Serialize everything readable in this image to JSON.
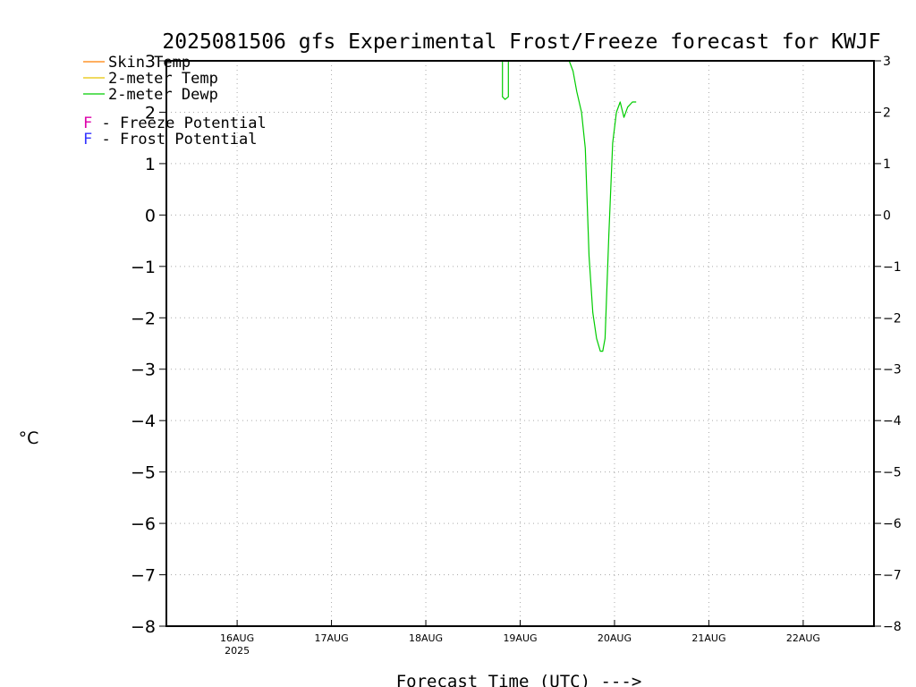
{
  "chart_data": {
    "type": "line",
    "title": "2025081506 gfs Experimental Frost/Freeze forecast for KWJF",
    "ylabel": "°C",
    "xlabel": "Forecast Time (UTC) --->",
    "ylim": [
      -8,
      3
    ],
    "yticks": [
      3,
      2,
      1,
      0,
      -1,
      -2,
      -3,
      -4,
      -5,
      -6,
      -7,
      -8
    ],
    "ytick_labels": [
      "3",
      "2",
      "1",
      "0",
      "−1",
      "−2",
      "−3",
      "−4",
      "−5",
      "−6",
      "−7",
      "−8"
    ],
    "xlim_days": [
      15.25,
      22.75
    ],
    "x_ticks": [
      {
        "day": 16,
        "label": "16AUG",
        "sublabel": "2025"
      },
      {
        "day": 17,
        "label": "17AUG",
        "sublabel": ""
      },
      {
        "day": 18,
        "label": "18AUG",
        "sublabel": ""
      },
      {
        "day": 19,
        "label": "19AUG",
        "sublabel": ""
      },
      {
        "day": 20,
        "label": "20AUG",
        "sublabel": ""
      },
      {
        "day": 21,
        "label": "21AUG",
        "sublabel": ""
      },
      {
        "day": 22,
        "label": "22AUG",
        "sublabel": ""
      }
    ],
    "grid": true,
    "legend": [
      {
        "label": "Skin Temp",
        "color": "#ff7f00"
      },
      {
        "label": "2-meter Temp",
        "color": "#e8c400"
      },
      {
        "label": "2-meter Dewp",
        "color": "#00cc00"
      }
    ],
    "annotations": [
      {
        "marker": "F",
        "text": " - Freeze Potential",
        "marker_color": "#dd00aa"
      },
      {
        "marker": "F",
        "text": " - Frost Potential",
        "marker_color": "#3333ff"
      }
    ],
    "series": [
      {
        "name": "2-meter Dewp",
        "color": "#00cc00",
        "segments": [
          [
            [
              18.8125,
              3.0
            ],
            [
              18.8125,
              2.3
            ],
            [
              18.84,
              2.25
            ],
            [
              18.875,
              2.3
            ],
            [
              18.875,
              3.0
            ]
          ],
          [
            [
              19.52,
              3.0
            ],
            [
              19.56,
              2.8
            ],
            [
              19.6,
              2.4
            ],
            [
              19.65,
              2.0
            ],
            [
              19.69,
              1.3
            ],
            [
              19.73,
              -0.8
            ],
            [
              19.77,
              -1.9
            ],
            [
              19.81,
              -2.4
            ],
            [
              19.85,
              -2.65
            ],
            [
              19.875,
              -2.65
            ],
            [
              19.9,
              -2.4
            ],
            [
              19.94,
              -0.4
            ],
            [
              19.98,
              1.4
            ],
            [
              20.02,
              2.0
            ],
            [
              20.06,
              2.2
            ],
            [
              20.1,
              1.9
            ],
            [
              20.14,
              2.1
            ],
            [
              20.19,
              2.2
            ],
            [
              20.23,
              2.2
            ]
          ]
        ]
      }
    ]
  }
}
